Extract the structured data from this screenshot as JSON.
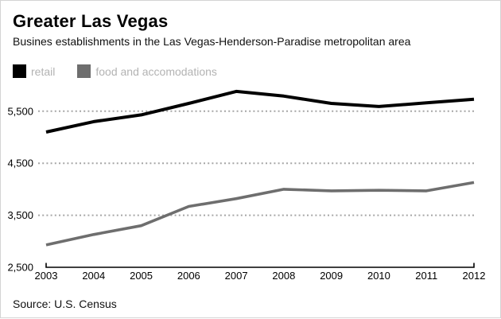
{
  "header": {
    "title": "Greater Las Vegas",
    "subtitle": "Busines establishments in the Las Vegas-Henderson-Paradise metropolitan area"
  },
  "legend": [
    {
      "label": "retail",
      "color": "#000000"
    },
    {
      "label": "food and accomodations",
      "color": "#6e6e6e"
    }
  ],
  "source": "Source: U.S. Census",
  "colors": {
    "retail_line": "#000000",
    "food_line": "#6e6e6e",
    "legend_text": "#b3b3b3",
    "gridline": "#a6a6a6",
    "axis": "#000000"
  },
  "chart_data": {
    "type": "line",
    "x": [
      2003,
      2004,
      2005,
      2006,
      2007,
      2008,
      2009,
      2010,
      2011,
      2012
    ],
    "series": [
      {
        "name": "retail",
        "color": "#000000",
        "values": [
          5100,
          5300,
          5430,
          5650,
          5880,
          5790,
          5650,
          5590,
          5660,
          5730
        ]
      },
      {
        "name": "food and accomodations",
        "color": "#6e6e6e",
        "values": [
          2930,
          3130,
          3300,
          3670,
          3820,
          4000,
          3970,
          3980,
          3970,
          4130
        ]
      }
    ],
    "title": "Greater Las Vegas",
    "subtitle": "Busines establishments in the Las Vegas-Henderson-Paradise metropolitan area",
    "xlabel": "",
    "ylabel": "",
    "ylim": [
      2500,
      6100
    ],
    "yticks": [
      2500,
      3500,
      4500,
      5500
    ],
    "ytick_labels": [
      "2,500",
      "3,500",
      "4,500",
      "5,500"
    ],
    "xtick_labels": [
      "2003",
      "2004",
      "2005",
      "2006",
      "2007",
      "2008",
      "2009",
      "2010",
      "2011",
      "2012"
    ],
    "grid": "horizontal dotted gridlines at 3500, 4500, 5500; solid axis baseline at 2500",
    "legend_position": "top-left",
    "source": "Source: U.S. Census"
  }
}
